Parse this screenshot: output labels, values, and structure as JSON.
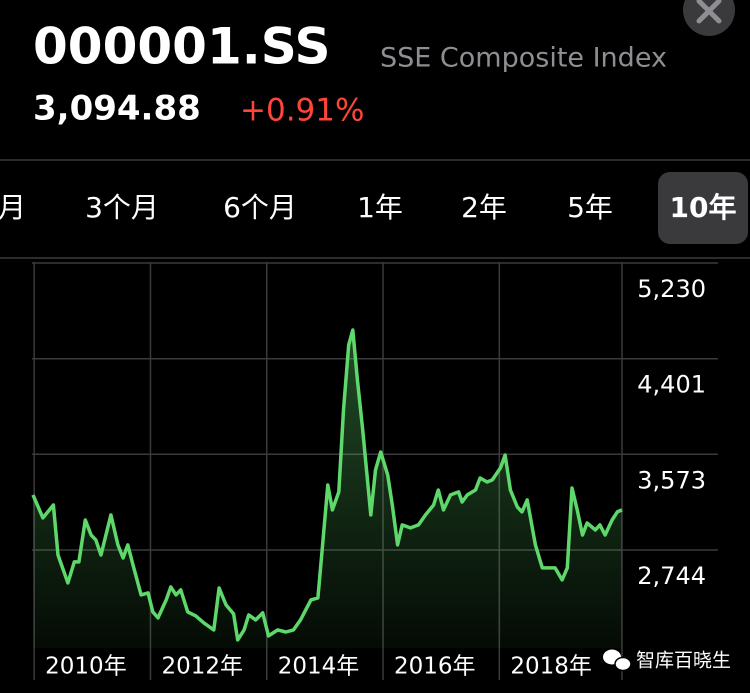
{
  "header": {
    "symbol": "000001.SS",
    "name": "SSE Composite Index",
    "price": "3,094.88",
    "change": "+0.91%"
  },
  "tabs": [
    "月",
    "3个月",
    "6个月",
    "1年",
    "2年",
    "5年",
    "10年"
  ],
  "selected_tab": 6,
  "chart_data": {
    "type": "line",
    "color": "#5fd86b",
    "grid": true,
    "x": [
      2009.98,
      2010.15,
      2010.33,
      2010.41,
      2010.58,
      2010.69,
      2010.77,
      2010.88,
      2010.98,
      2011.06,
      2011.15,
      2011.32,
      2011.44,
      2011.53,
      2011.61,
      2011.7,
      2011.84,
      2011.96,
      2012.04,
      2012.13,
      2012.27,
      2012.35,
      2012.44,
      2012.52,
      2012.64,
      2012.78,
      2012.92,
      2013.09,
      2013.18,
      2013.3,
      2013.43,
      2013.5,
      2013.61,
      2013.69,
      2013.81,
      2013.93,
      2014.03,
      2014.19,
      2014.33,
      2014.46,
      2014.58,
      2014.76,
      2014.88,
      2014.96,
      2015.05,
      2015.13,
      2015.24,
      2015.32,
      2015.41,
      2015.48,
      2015.56,
      2015.65,
      2015.79,
      2015.87,
      2015.96,
      2016.08,
      2016.16,
      2016.25,
      2016.33,
      2016.47,
      2016.61,
      2016.73,
      2016.87,
      2016.95,
      2017.04,
      2017.16,
      2017.3,
      2017.36,
      2017.45,
      2017.59,
      2017.67,
      2017.79,
      2017.88,
      2018.02,
      2018.1,
      2018.19,
      2018.31,
      2018.39,
      2018.48,
      2018.62,
      2018.74,
      2018.88,
      2018.96,
      2019.08,
      2019.17,
      2019.25,
      2019.34,
      2019.43,
      2019.51,
      2019.65,
      2019.73,
      2019.82,
      2019.94,
      2020.03,
      2020.11
    ],
    "values": [
      3221,
      3022,
      3134,
      2701,
      2459,
      2641,
      2641,
      3004,
      2874,
      2831,
      2701,
      3048,
      2788,
      2675,
      2788,
      2615,
      2355,
      2372,
      2208,
      2156,
      2312,
      2424,
      2355,
      2398,
      2208,
      2173,
      2112,
      2052,
      2415,
      2268,
      2190,
      1965,
      2052,
      2182,
      2138,
      2199,
      2000,
      2052,
      2034,
      2052,
      2138,
      2312,
      2329,
      2788,
      3307,
      3091,
      3247,
      3957,
      4520,
      4650,
      4217,
      3784,
      3048,
      3437,
      3593,
      3394,
      3134,
      2788,
      2961,
      2935,
      2961,
      3048,
      3134,
      3264,
      3091,
      3221,
      3247,
      3160,
      3221,
      3264,
      3368,
      3333,
      3351,
      3455,
      3567,
      3264,
      3117,
      3074,
      3178,
      2788,
      2589,
      2589,
      2589,
      2485,
      2589,
      3281,
      3091,
      2874,
      2978,
      2918,
      2961,
      2874,
      3004,
      3074,
      3091
    ],
    "xlim": [
      2009.98,
      2020.11
    ],
    "ylim": [
      1895,
      5230
    ],
    "xticks": [
      {
        "value": 2010,
        "label": "2010年"
      },
      {
        "value": 2012,
        "label": "2012年"
      },
      {
        "value": 2014,
        "label": "2014年"
      },
      {
        "value": 2016,
        "label": "2016年"
      },
      {
        "value": 2018,
        "label": "2018年"
      }
    ],
    "yticks": [
      {
        "value": 2744,
        "label": "2,744"
      },
      {
        "value": 3573,
        "label": "3,573"
      },
      {
        "value": 4401,
        "label": "4,401"
      },
      {
        "value": 5230,
        "label": "5,230"
      }
    ]
  },
  "watermark": "智库百晓生"
}
